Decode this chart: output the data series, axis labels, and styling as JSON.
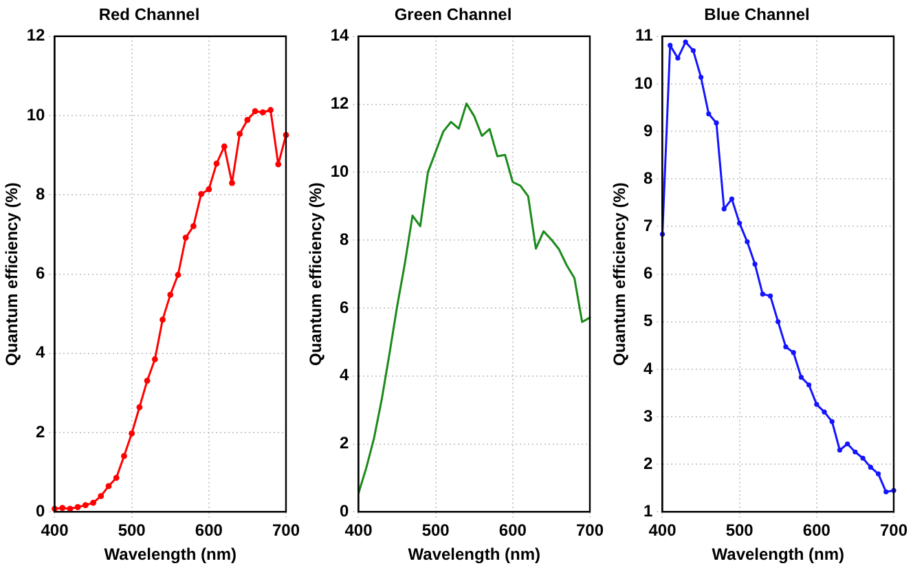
{
  "chart_data": [
    {
      "type": "line",
      "title": "Red Channel",
      "xlabel": "Wavelength (nm)",
      "ylabel": "Quantum efficiency (%)",
      "marker": "circle",
      "grid": true,
      "x": [
        400,
        410,
        420,
        430,
        440,
        450,
        460,
        470,
        480,
        490,
        500,
        510,
        520,
        530,
        540,
        550,
        560,
        570,
        580,
        590,
        600,
        610,
        620,
        630,
        640,
        650,
        660,
        670,
        680,
        690,
        700
      ],
      "series": [
        {
          "color": "#ff0000",
          "values": [
            0.08,
            0.1,
            0.08,
            0.12,
            0.17,
            0.23,
            0.4,
            0.65,
            0.86,
            1.41,
            1.98,
            2.64,
            3.31,
            3.85,
            4.85,
            5.48,
            5.98,
            6.92,
            7.21,
            8.02,
            8.14,
            8.79,
            9.22,
            8.3,
            9.54,
            9.89,
            10.11,
            10.08,
            10.14,
            8.77,
            9.51
          ]
        }
      ],
      "xlim": [
        400,
        700
      ],
      "xticks": [
        400,
        500,
        600,
        700
      ],
      "ylim": [
        0,
        12
      ],
      "yticks": [
        0,
        2,
        4,
        6,
        8,
        10,
        12
      ]
    },
    {
      "type": "line",
      "title": "Green Channel",
      "xlabel": "Wavelength (nm)",
      "ylabel": "Quantum efficiency (%)",
      "marker": "none",
      "grid": true,
      "x": [
        400,
        410,
        420,
        430,
        440,
        450,
        460,
        470,
        480,
        490,
        500,
        510,
        520,
        530,
        540,
        550,
        560,
        570,
        580,
        590,
        600,
        610,
        620,
        630,
        640,
        650,
        660,
        670,
        680,
        690,
        700
      ],
      "series": [
        {
          "color": "#1a8a1a",
          "values": [
            0.55,
            1.29,
            2.16,
            3.3,
            4.64,
            6.04,
            7.3,
            8.72,
            8.41,
            10.0,
            10.6,
            11.2,
            11.48,
            11.28,
            12.02,
            11.65,
            11.07,
            11.27,
            10.47,
            10.51,
            9.71,
            9.6,
            9.29,
            7.75,
            8.26,
            8.02,
            7.73,
            7.26,
            6.88,
            5.59,
            5.72
          ]
        }
      ],
      "xlim": [
        400,
        700
      ],
      "xticks": [
        400,
        500,
        600,
        700
      ],
      "ylim": [
        0,
        14
      ],
      "yticks": [
        0,
        2,
        4,
        6,
        8,
        10,
        12,
        14
      ]
    },
    {
      "type": "line",
      "title": "Blue Channel",
      "xlabel": "Wavelength (nm)",
      "ylabel": "Quantum efficiency (%)",
      "marker": "circle",
      "grid": true,
      "x": [
        400,
        410,
        420,
        430,
        440,
        450,
        460,
        470,
        480,
        490,
        500,
        510,
        520,
        530,
        540,
        550,
        560,
        570,
        580,
        590,
        600,
        610,
        620,
        630,
        640,
        650,
        660,
        670,
        680,
        690,
        700
      ],
      "series": [
        {
          "color": "#1414ff",
          "values": [
            6.84,
            10.81,
            10.54,
            10.88,
            10.7,
            10.14,
            9.37,
            9.18,
            7.37,
            7.58,
            7.07,
            6.68,
            6.21,
            5.58,
            5.54,
            5.0,
            4.47,
            4.35,
            3.83,
            3.67,
            3.26,
            3.1,
            2.9,
            2.3,
            2.43,
            2.26,
            2.13,
            1.94,
            1.8,
            1.42,
            1.45
          ]
        }
      ],
      "xlim": [
        400,
        700
      ],
      "xticks": [
        400,
        500,
        600,
        700
      ],
      "ylim": [
        1,
        11
      ],
      "yticks": [
        1,
        2,
        3,
        4,
        5,
        6,
        7,
        8,
        9,
        10,
        11
      ]
    }
  ]
}
